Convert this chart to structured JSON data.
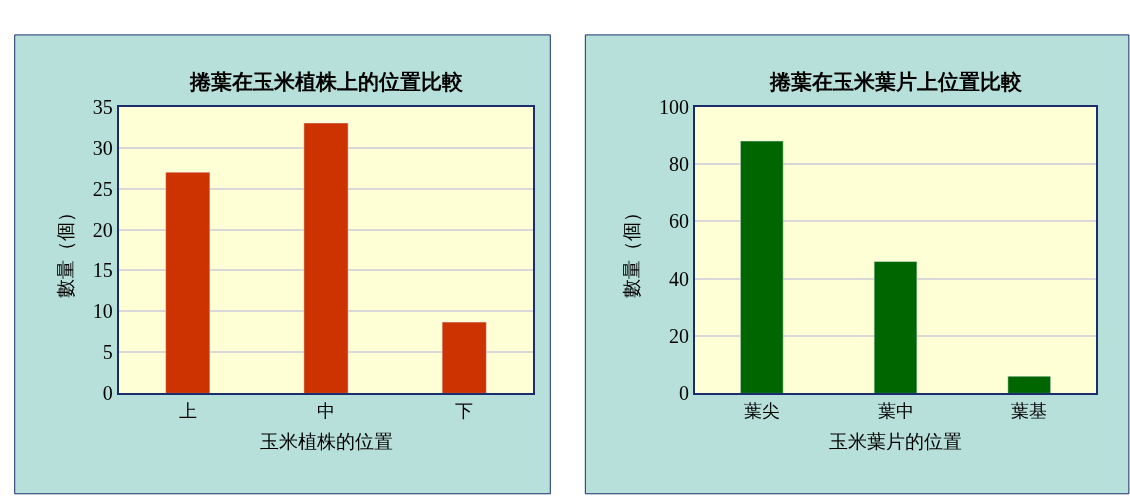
{
  "chart_data": [
    {
      "type": "bar",
      "title": "捲葉在玉米植株上的位置比較",
      "xlabel": "玉米植株的位置",
      "ylabel": "數量（個）",
      "categories": [
        "上",
        "中",
        "下"
      ],
      "values": [
        27,
        33,
        8.7
      ],
      "color": "#cc3300",
      "ylim": [
        0,
        35
      ],
      "yticks": [
        0,
        5,
        10,
        15,
        20,
        25,
        30,
        35
      ],
      "grid": "y"
    },
    {
      "type": "bar",
      "title": "捲葉在玉米葉片上位置比較",
      "xlabel": "玉米葉片的位置",
      "ylabel": "數量（個）",
      "categories": [
        "葉尖",
        "葉中",
        "葉基"
      ],
      "values": [
        88,
        46,
        6
      ],
      "color": "#006600",
      "ylim": [
        0,
        100
      ],
      "yticks": [
        0,
        20,
        40,
        60,
        80,
        100
      ],
      "grid": "y"
    }
  ]
}
